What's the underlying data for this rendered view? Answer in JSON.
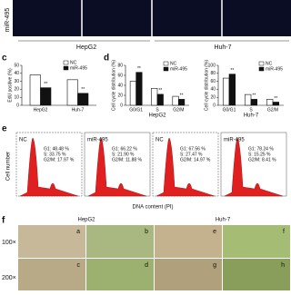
{
  "top": {
    "row_label": "miR-495",
    "cells": [
      "HepG2",
      "Huh-7"
    ]
  },
  "panel_c": {
    "letter": "c",
    "ylabel": "EdU positive (%)",
    "categories": [
      "HepG2",
      "Huh-7"
    ],
    "series": [
      {
        "name": "NC",
        "color": "#ffffff",
        "values": [
          38,
          32
        ]
      },
      {
        "name": "miR-495",
        "color": "#111111",
        "values": [
          22,
          15
        ]
      }
    ],
    "ylim": [
      0,
      50
    ],
    "yticks": [
      0,
      10,
      20,
      30,
      40,
      50
    ],
    "significance": [
      "**",
      "**"
    ]
  },
  "panel_d": {
    "letter": "d",
    "charts": [
      {
        "ylabel": "Cell cycle distribution (%)",
        "group": "HepG2",
        "categories": [
          "G0/G1",
          "S",
          "G2/M"
        ],
        "series": [
          {
            "name": "NC",
            "color": "#ffffff",
            "values": [
              48,
              34,
              18
            ]
          },
          {
            "name": "miR-495",
            "color": "#111111",
            "values": [
              66,
              22,
              12
            ]
          }
        ],
        "ylim": [
          0,
          80
        ],
        "yticks": [
          0,
          20,
          40,
          60,
          80
        ],
        "significance": [
          "**",
          "**",
          "**"
        ]
      },
      {
        "ylabel": "Cell cycle distribution (%)",
        "group": "Huh-7",
        "categories": [
          "G0/G1",
          "S",
          "G2/M"
        ],
        "series": [
          {
            "name": "NC",
            "color": "#ffffff",
            "values": [
              68,
              27,
              15
            ]
          },
          {
            "name": "miR-495",
            "color": "#111111",
            "values": [
              78,
              15,
              8
            ]
          }
        ],
        "ylim": [
          0,
          100
        ],
        "yticks": [
          0,
          20,
          40,
          60,
          80,
          100
        ],
        "significance": [
          "**",
          "**",
          "**"
        ]
      }
    ]
  },
  "panel_e": {
    "letter": "e",
    "ylabel": "Cell number",
    "xlabel": "DNA content (PI)",
    "panels": [
      {
        "label": "NC",
        "stats": [
          "G1: 48.48 %",
          "S: 33.75 %",
          "G2/M: 17.97 %"
        ]
      },
      {
        "label": "miR-495",
        "stats": [
          "G1: 66.22 %",
          "S: 21.90 %",
          "G2/M: 11.88 %"
        ]
      },
      {
        "label": "NC",
        "stats": [
          "G1: 67.56 %",
          "S: 27.47 %",
          "G2/M: 14.97 %"
        ]
      },
      {
        "label": "miR-495",
        "stats": [
          "G1: 78.24 %",
          "S: 15.25 %",
          "G2/M: 8.41 %"
        ]
      }
    ]
  },
  "panel_f": {
    "letter": "f",
    "cells": [
      "HepG2",
      "Huh-7"
    ],
    "rows": [
      "100×",
      "200×"
    ],
    "images": [
      [
        "a",
        "b",
        "e",
        "f"
      ],
      [
        "c",
        "d",
        "g",
        "h"
      ]
    ]
  }
}
